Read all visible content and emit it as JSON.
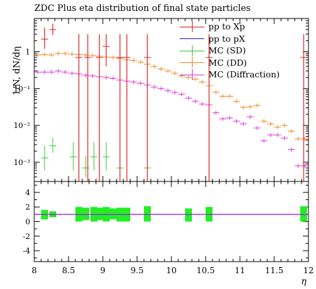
{
  "chart_data": [
    {
      "type": "scatter",
      "title": "ZDC Plus eta distribution of final state particles",
      "ylabel": "1/N, dN/dη",
      "xlabel": "η",
      "xlim": [
        8,
        12
      ],
      "ylim": [
        0.0003,
        8
      ],
      "yscale": "log",
      "y_tick_labels": [
        "1",
        "10⁻¹",
        "10⁻²",
        "10⁻³"
      ],
      "x_tick_labels": [
        "8",
        "8.5",
        "9",
        "9.5",
        "10",
        "10.5",
        "11",
        "11.5",
        "12"
      ],
      "legend_position": "top-right",
      "series": [
        {
          "name": "pp to Xp",
          "color": "#dd2222",
          "points": [
            {
              "x": 8.15,
              "y": 2.2,
              "ylo": 1.2,
              "yhi": 4.5
            },
            {
              "x": 8.27,
              "y": 4.0,
              "ylo": 2.8,
              "yhi": 5.8
            },
            {
              "x": 8.65,
              "y": 0.7,
              "ylo": 0.0003,
              "yhi": 3.0
            },
            {
              "x": 8.78,
              "y": 0.7,
              "ylo": 0.0003,
              "yhi": 3.0
            },
            {
              "x": 8.95,
              "y": 0.7,
              "ylo": 0.0003,
              "yhi": 3.0
            },
            {
              "x": 9.05,
              "y": 1.4,
              "ylo": 0.4,
              "yhi": 3.0
            },
            {
              "x": 9.25,
              "y": 0.7,
              "ylo": 0.0003,
              "yhi": 3.0
            },
            {
              "x": 9.35,
              "y": 0.7,
              "ylo": 0.0003,
              "yhi": 3.0
            },
            {
              "x": 9.65,
              "y": 0.7,
              "ylo": 0.0003,
              "yhi": 3.0
            },
            {
              "x": 10.55,
              "y": 0.7,
              "ylo": 0.0003,
              "yhi": 3.0
            },
            {
              "x": 11.93,
              "y": 0.7,
              "ylo": 0.0003,
              "yhi": 3.0
            }
          ]
        },
        {
          "name": "pp to pX",
          "color": "#2222dd",
          "points": []
        },
        {
          "name": "MC (SD)",
          "color": "#33cc33",
          "points": [
            {
              "x": 8.15,
              "y": 0.0013,
              "ylo": 0.0006,
              "yhi": 0.0028
            },
            {
              "x": 8.27,
              "y": 0.0028,
              "ylo": 0.0018,
              "yhi": 0.0045
            },
            {
              "x": 8.57,
              "y": 0.0014,
              "ylo": 0.0006,
              "yhi": 0.0035
            },
            {
              "x": 8.75,
              "y": 0.0007,
              "ylo": 0.0004,
              "yhi": 0.0015
            },
            {
              "x": 8.87,
              "y": 0.0014,
              "ylo": 0.0006,
              "yhi": 0.0035
            },
            {
              "x": 9.05,
              "y": 0.0014,
              "ylo": 0.0006,
              "yhi": 0.0035
            },
            {
              "x": 9.25,
              "y": 0.0007,
              "ylo": 0.0004,
              "yhi": 0.0015
            },
            {
              "x": 9.65,
              "y": 0.0007,
              "ylo": 0.0004,
              "yhi": 0.0015
            }
          ]
        },
        {
          "name": "MC (DD)",
          "color": "#ee8822",
          "points": [
            {
              "x": 8.05,
              "y": 0.82
            },
            {
              "x": 8.15,
              "y": 0.84
            },
            {
              "x": 8.25,
              "y": 0.82
            },
            {
              "x": 8.35,
              "y": 0.9
            },
            {
              "x": 8.45,
              "y": 0.9
            },
            {
              "x": 8.55,
              "y": 0.86
            },
            {
              "x": 8.65,
              "y": 0.84
            },
            {
              "x": 8.75,
              "y": 0.82
            },
            {
              "x": 8.85,
              "y": 0.78
            },
            {
              "x": 8.95,
              "y": 0.76
            },
            {
              "x": 9.05,
              "y": 0.72
            },
            {
              "x": 9.15,
              "y": 0.7
            },
            {
              "x": 9.25,
              "y": 0.66
            },
            {
              "x": 9.35,
              "y": 0.6
            },
            {
              "x": 9.45,
              "y": 0.58
            },
            {
              "x": 9.55,
              "y": 0.52
            },
            {
              "x": 9.65,
              "y": 0.46
            },
            {
              "x": 9.75,
              "y": 0.4
            },
            {
              "x": 9.85,
              "y": 0.34
            },
            {
              "x": 9.95,
              "y": 0.3
            },
            {
              "x": 10.05,
              "y": 0.26
            },
            {
              "x": 10.15,
              "y": 0.22
            },
            {
              "x": 10.25,
              "y": 0.2
            },
            {
              "x": 10.35,
              "y": 0.18
            },
            {
              "x": 10.45,
              "y": 0.15
            },
            {
              "x": 10.55,
              "y": 0.12
            },
            {
              "x": 10.65,
              "y": 0.08
            },
            {
              "x": 10.75,
              "y": 0.062
            },
            {
              "x": 10.85,
              "y": 0.062
            },
            {
              "x": 10.95,
              "y": 0.045
            },
            {
              "x": 11.05,
              "y": 0.031
            },
            {
              "x": 11.15,
              "y": 0.032
            },
            {
              "x": 11.25,
              "y": 0.035
            },
            {
              "x": 11.35,
              "y": 0.013
            },
            {
              "x": 11.45,
              "y": 0.011
            },
            {
              "x": 11.55,
              "y": 0.009
            },
            {
              "x": 11.65,
              "y": 0.01
            },
            {
              "x": 11.75,
              "y": 0.007
            },
            {
              "x": 11.85,
              "y": 0.0043
            },
            {
              "x": 11.95,
              "y": 0.0043
            }
          ]
        },
        {
          "name": "MC (Diffraction)",
          "color": "#dd33dd",
          "points": [
            {
              "x": 8.05,
              "y": 0.28
            },
            {
              "x": 8.15,
              "y": 0.28
            },
            {
              "x": 8.25,
              "y": 0.28
            },
            {
              "x": 8.35,
              "y": 0.3
            },
            {
              "x": 8.45,
              "y": 0.28
            },
            {
              "x": 8.55,
              "y": 0.26
            },
            {
              "x": 8.65,
              "y": 0.25
            },
            {
              "x": 8.75,
              "y": 0.23
            },
            {
              "x": 8.85,
              "y": 0.22
            },
            {
              "x": 8.95,
              "y": 0.21
            },
            {
              "x": 9.05,
              "y": 0.2
            },
            {
              "x": 9.15,
              "y": 0.19
            },
            {
              "x": 9.25,
              "y": 0.17
            },
            {
              "x": 9.35,
              "y": 0.16
            },
            {
              "x": 9.45,
              "y": 0.15
            },
            {
              "x": 9.55,
              "y": 0.14
            },
            {
              "x": 9.65,
              "y": 0.125
            },
            {
              "x": 9.75,
              "y": 0.11
            },
            {
              "x": 9.85,
              "y": 0.1
            },
            {
              "x": 9.95,
              "y": 0.088
            },
            {
              "x": 10.05,
              "y": 0.078
            },
            {
              "x": 10.15,
              "y": 0.07
            },
            {
              "x": 10.25,
              "y": 0.055
            },
            {
              "x": 10.35,
              "y": 0.045
            },
            {
              "x": 10.45,
              "y": 0.038
            },
            {
              "x": 10.55,
              "y": 0.036
            },
            {
              "x": 10.65,
              "y": 0.022
            },
            {
              "x": 10.75,
              "y": 0.015
            },
            {
              "x": 10.85,
              "y": 0.016
            },
            {
              "x": 10.95,
              "y": 0.013
            },
            {
              "x": 11.05,
              "y": 0.011
            },
            {
              "x": 11.15,
              "y": 0.017
            },
            {
              "x": 11.25,
              "y": 0.0085
            },
            {
              "x": 11.35,
              "y": 0.0038
            },
            {
              "x": 11.45,
              "y": 0.0055
            },
            {
              "x": 11.55,
              "y": 0.0055
            },
            {
              "x": 11.65,
              "y": 0.0045
            },
            {
              "x": 11.75,
              "y": 0.0022
            },
            {
              "x": 11.85,
              "y": 0.0008
            },
            {
              "x": 11.95,
              "y": 0.0008
            }
          ]
        }
      ]
    },
    {
      "type": "scatter",
      "panel": "ratio",
      "xlim": [
        8,
        12
      ],
      "ylim": [
        -5.5,
        5.5
      ],
      "y_tick_labels": [
        "4",
        "2",
        "0",
        "-2",
        "-4"
      ],
      "reference_line": 1.0,
      "green_band_bins": [
        {
          "x": 8.15,
          "lo": 0.3,
          "hi": 1.6
        },
        {
          "x": 8.27,
          "lo": 0.6,
          "hi": 1.4
        },
        {
          "x": 8.65,
          "lo": 0.0,
          "hi": 2.0
        },
        {
          "x": 8.75,
          "lo": 0.2,
          "hi": 1.9
        },
        {
          "x": 8.87,
          "lo": 0.0,
          "hi": 2.0
        },
        {
          "x": 8.95,
          "lo": 0.2,
          "hi": 1.9
        },
        {
          "x": 9.05,
          "lo": 0.0,
          "hi": 2.0
        },
        {
          "x": 9.15,
          "lo": 0.3,
          "hi": 1.8
        },
        {
          "x": 9.25,
          "lo": 0.0,
          "hi": 1.9
        },
        {
          "x": 9.35,
          "lo": 0.0,
          "hi": 1.9
        },
        {
          "x": 9.65,
          "lo": 0.0,
          "hi": 2.1
        },
        {
          "x": 10.25,
          "lo": 0.0,
          "hi": 1.8
        },
        {
          "x": 10.55,
          "lo": 0.0,
          "hi": 2.0
        },
        {
          "x": 11.93,
          "lo": 0.0,
          "hi": 2.1
        }
      ]
    }
  ]
}
